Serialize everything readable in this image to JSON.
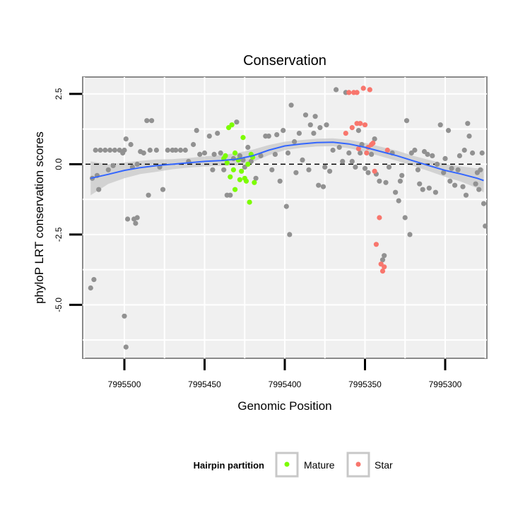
{
  "chart_data": {
    "type": "scatter",
    "title": "Conservation",
    "xlabel": "Genomic Position",
    "ylabel": "phyloP LRT conservation scores",
    "xlim": [
      7995526,
      7995274
    ],
    "ylim": [
      -6.9,
      3.1
    ],
    "x_reversed": true,
    "x_ticks": [
      7995500,
      7995450,
      7995400,
      7995350,
      7995300
    ],
    "x_tick_labels": [
      "7995500",
      "7995450",
      "7995400",
      "7995350",
      "7995300"
    ],
    "y_ticks": [
      2.5,
      0.0,
      -2.5,
      -5.0
    ],
    "y_tick_labels": [
      "2.5",
      "0.0",
      "-2.5",
      "-5.0"
    ],
    "reference_line": {
      "y": 0.0,
      "style": "dashed"
    },
    "legend": {
      "title": "Hairpin partition",
      "placement": "bottom",
      "entries": [
        {
          "label": "Mature",
          "color": "#7cfc00"
        },
        {
          "label": "Star",
          "color": "#f8766d"
        }
      ]
    },
    "colors": {
      "background": "#f0f0f0",
      "none": "#919191",
      "mature": "#7cfc00",
      "star": "#f8766d",
      "smooth": "#3366ff",
      "band": "#c8c8c8"
    },
    "smooth": {
      "x": [
        7995521,
        7995510,
        7995500,
        7995490,
        7995480,
        7995470,
        7995460,
        7995450,
        7995440,
        7995430,
        7995420,
        7995410,
        7995400,
        7995390,
        7995380,
        7995370,
        7995360,
        7995350,
        7995340,
        7995330,
        7995320,
        7995310,
        7995300,
        7995290,
        7995280,
        7995276
      ],
      "y": [
        -0.5,
        -0.36,
        -0.22,
        -0.12,
        -0.05,
        0.0,
        0.05,
        0.1,
        0.13,
        0.18,
        0.3,
        0.5,
        0.65,
        0.72,
        0.77,
        0.78,
        0.72,
        0.6,
        0.45,
        0.3,
        0.12,
        -0.05,
        -0.22,
        -0.35,
        -0.5,
        -0.58
      ],
      "lower": [
        -1.1,
        -0.7,
        -0.5,
        -0.35,
        -0.27,
        -0.18,
        -0.12,
        -0.08,
        -0.06,
        -0.04,
        0.08,
        0.32,
        0.5,
        0.58,
        0.63,
        0.64,
        0.57,
        0.44,
        0.28,
        0.12,
        -0.06,
        -0.25,
        -0.45,
        -0.62,
        -0.85,
        -1.0
      ],
      "upper": [
        0.1,
        0.0,
        0.06,
        0.12,
        0.17,
        0.18,
        0.22,
        0.28,
        0.32,
        0.4,
        0.52,
        0.68,
        0.8,
        0.86,
        0.91,
        0.92,
        0.87,
        0.76,
        0.62,
        0.48,
        0.3,
        0.15,
        0.01,
        -0.08,
        -0.15,
        -0.16
      ]
    },
    "series": [
      {
        "name": "None",
        "color": "#919191",
        "points": [
          [
            7995521,
            -4.4
          ],
          [
            7995519,
            -4.1
          ],
          [
            7995520,
            -0.5
          ],
          [
            7995517,
            -0.4
          ],
          [
            7995518,
            0.5
          ],
          [
            7995515,
            0.5
          ],
          [
            7995512,
            0.5
          ],
          [
            7995509,
            0.5
          ],
          [
            7995506,
            0.5
          ],
          [
            7995503,
            0.5
          ],
          [
            7995500,
            0.5
          ],
          [
            7995516,
            -0.9
          ],
          [
            7995510,
            -0.2
          ],
          [
            7995507,
            -0.05
          ],
          [
            7995501,
            0.4
          ],
          [
            7995499,
            0.9
          ],
          [
            7995498,
            -1.95
          ],
          [
            7995496,
            0.7
          ],
          [
            7995494,
            -1.95
          ],
          [
            7995493,
            -2.1
          ],
          [
            7995492,
            -1.9
          ],
          [
            7995500,
            -5.4
          ],
          [
            7995499,
            -6.5
          ],
          [
            7995495,
            -0.1
          ],
          [
            7995492,
            0.0
          ],
          [
            7995490,
            0.45
          ],
          [
            7995488,
            0.4
          ],
          [
            7995486,
            1.55
          ],
          [
            7995483,
            1.55
          ],
          [
            7995485,
            -1.1
          ],
          [
            7995484,
            0.5
          ],
          [
            7995480,
            0.5
          ],
          [
            7995478,
            -0.1
          ],
          [
            7995476,
            -0.9
          ],
          [
            7995473,
            0.5
          ],
          [
            7995470,
            0.5
          ],
          [
            7995468,
            0.5
          ],
          [
            7995465,
            0.5
          ],
          [
            7995462,
            0.5
          ],
          [
            7995460,
            0.1
          ],
          [
            7995457,
            0.7
          ],
          [
            7995455,
            1.2
          ],
          [
            7995453,
            0.35
          ],
          [
            7995450,
            0.4
          ],
          [
            7995447,
            1.0
          ],
          [
            7995445,
            -0.2
          ],
          [
            7995444,
            0.35
          ],
          [
            7995442,
            1.1
          ],
          [
            7995440,
            0.4
          ],
          [
            7995438,
            -0.2
          ],
          [
            7995436,
            -1.1
          ],
          [
            7995434,
            -1.1
          ],
          [
            7995432,
            0.2
          ],
          [
            7995430,
            1.5
          ],
          [
            7995428,
            0.3
          ],
          [
            7995426,
            0.15
          ],
          [
            7995425,
            -0.1
          ],
          [
            7995423,
            0.6
          ],
          [
            7995421,
            0.1
          ],
          [
            7995418,
            -0.5
          ],
          [
            7995415,
            0.3
          ],
          [
            7995412,
            1.0
          ],
          [
            7995410,
            1.0
          ],
          [
            7995408,
            -0.2
          ],
          [
            7995406,
            0.35
          ],
          [
            7995405,
            1.05
          ],
          [
            7995403,
            -0.6
          ],
          [
            7995401,
            1.2
          ],
          [
            7995399,
            -1.5
          ],
          [
            7995398,
            0.4
          ],
          [
            7995397,
            -2.5
          ],
          [
            7995396,
            2.1
          ],
          [
            7995394,
            0.8
          ],
          [
            7995393,
            -0.3
          ],
          [
            7995391,
            1.1
          ],
          [
            7995389,
            0.15
          ],
          [
            7995387,
            1.75
          ],
          [
            7995385,
            -0.2
          ],
          [
            7995384,
            1.4
          ],
          [
            7995382,
            1.1
          ],
          [
            7995381,
            1.7
          ],
          [
            7995379,
            -0.75
          ],
          [
            7995378,
            1.3
          ],
          [
            7995376,
            -0.8
          ],
          [
            7995375,
            -0.1
          ],
          [
            7995374,
            1.4
          ],
          [
            7995372,
            -0.25
          ],
          [
            7995370,
            0.5
          ],
          [
            7995368,
            2.65
          ],
          [
            7995366,
            0.6
          ],
          [
            7995364,
            0.1
          ],
          [
            7995362,
            2.55
          ],
          [
            7995360,
            0.4
          ],
          [
            7995358,
            0.1
          ],
          [
            7995356,
            -0.1
          ],
          [
            7995354,
            1.2
          ],
          [
            7995353,
            0.4
          ],
          [
            7995352,
            0.7
          ],
          [
            7995350,
            -0.15
          ],
          [
            7995348,
            -0.3
          ],
          [
            7995346,
            0.35
          ],
          [
            7995344,
            0.9
          ],
          [
            7995343,
            -0.35
          ],
          [
            7995341,
            -0.6
          ],
          [
            7995339,
            -3.4
          ],
          [
            7995338,
            -3.25
          ],
          [
            7995337,
            -0.65
          ],
          [
            7995335,
            -0.1
          ],
          [
            7995333,
            0.4
          ],
          [
            7995331,
            -1.0
          ],
          [
            7995329,
            -1.3
          ],
          [
            7995328,
            -0.6
          ],
          [
            7995327,
            -0.4
          ],
          [
            7995325,
            -1.9
          ],
          [
            7995324,
            1.55
          ],
          [
            7995322,
            -2.5
          ],
          [
            7995321,
            0.4
          ],
          [
            7995319,
            0.5
          ],
          [
            7995317,
            -0.2
          ],
          [
            7995316,
            -0.7
          ],
          [
            7995314,
            -0.9
          ],
          [
            7995313,
            0.45
          ],
          [
            7995311,
            0.35
          ],
          [
            7995310,
            -0.85
          ],
          [
            7995308,
            0.3
          ],
          [
            7995306,
            -1.0
          ],
          [
            7995305,
            0.0
          ],
          [
            7995303,
            1.4
          ],
          [
            7995301,
            -0.3
          ],
          [
            7995300,
            0.2
          ],
          [
            7995298,
            1.2
          ],
          [
            7995297,
            -0.6
          ],
          [
            7995296,
            -0.15
          ],
          [
            7995294,
            -0.75
          ],
          [
            7995292,
            -0.2
          ],
          [
            7995291,
            0.3
          ],
          [
            7995289,
            -0.8
          ],
          [
            7995288,
            0.5
          ],
          [
            7995287,
            -1.1
          ],
          [
            7995286,
            1.45
          ],
          [
            7995285,
            1.0
          ],
          [
            7995283,
            0.4
          ],
          [
            7995281,
            -0.7
          ],
          [
            7995280,
            -0.3
          ],
          [
            7995279,
            -0.9
          ],
          [
            7995278,
            -0.2
          ],
          [
            7995277,
            0.4
          ],
          [
            7995276,
            -1.4
          ],
          [
            7995275,
            -2.2
          ]
        ]
      },
      {
        "name": "Mature",
        "color": "#7cfc00",
        "points": [
          [
            7995437,
            0.3
          ],
          [
            7995435,
            1.3
          ],
          [
            7995433,
            1.4
          ],
          [
            7995431,
            0.4
          ],
          [
            7995434,
            -0.45
          ],
          [
            7995432,
            -0.2
          ],
          [
            7995431,
            -0.9
          ],
          [
            7995429,
            0.15
          ],
          [
            7995428,
            -0.55
          ],
          [
            7995427,
            -0.25
          ],
          [
            7995426,
            0.95
          ],
          [
            7995425,
            -0.5
          ],
          [
            7995424,
            -0.6
          ],
          [
            7995423,
            0.0
          ],
          [
            7995422,
            -1.35
          ],
          [
            7995421,
            0.35
          ],
          [
            7995420,
            0.25
          ],
          [
            7995419,
            -0.65
          ],
          [
            7995436,
            0.05
          ],
          [
            7995438,
            0.2
          ]
        ]
      },
      {
        "name": "Star",
        "color": "#f8766d",
        "points": [
          [
            7995362,
            1.1
          ],
          [
            7995360,
            2.55
          ],
          [
            7995358,
            1.3
          ],
          [
            7995357,
            2.55
          ],
          [
            7995355,
            1.45
          ],
          [
            7995355,
            2.55
          ],
          [
            7995353,
            1.45
          ],
          [
            7995351,
            2.7
          ],
          [
            7995350,
            1.4
          ],
          [
            7995349,
            0.4
          ],
          [
            7995348,
            0.6
          ],
          [
            7995347,
            2.65
          ],
          [
            7995346,
            0.7
          ],
          [
            7995345,
            0.75
          ],
          [
            7995344,
            -0.25
          ],
          [
            7995343,
            -2.85
          ],
          [
            7995341,
            -1.9
          ],
          [
            7995340,
            -3.55
          ],
          [
            7995339,
            -3.8
          ],
          [
            7995338,
            -3.65
          ],
          [
            7995336,
            0.5
          ],
          [
            7995354,
            0.55
          ]
        ]
      }
    ]
  }
}
